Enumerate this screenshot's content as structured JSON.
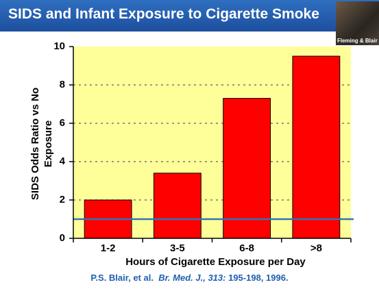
{
  "chart_data": {
    "type": "bar",
    "title": "SIDS and Infant Exposure to Cigarette Smoke",
    "photo_caption": "Fleming & Blair",
    "ylabel": [
      "SIDS Odds Ratio vs No",
      "Exposure"
    ],
    "xlabel": "Hours of Cigarette Exposure per Day",
    "categories": [
      "1-2",
      "3-5",
      "6-8",
      ">8"
    ],
    "values": [
      2.0,
      3.4,
      7.3,
      9.5
    ],
    "color": "#ff0000",
    "ylim": [
      0,
      10
    ],
    "yticks": [
      0,
      2,
      4,
      6,
      8,
      10
    ],
    "grid": true,
    "reference_line": {
      "value": 1,
      "color": "#2e75b6"
    },
    "source": [
      "P.S. Blair, et al.",
      "Br. Med. J., 313:",
      "195-198, 1996."
    ]
  }
}
